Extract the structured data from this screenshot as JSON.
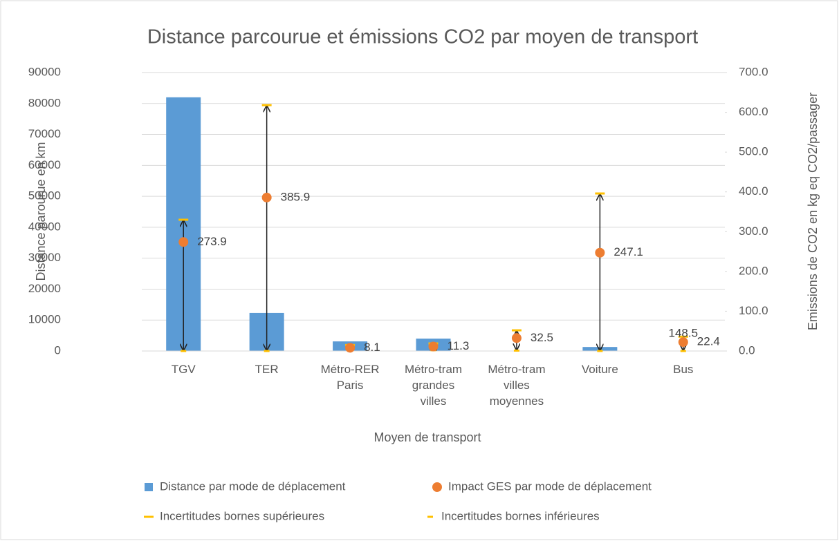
{
  "chart_data": {
    "type": "bar",
    "title": "Distance parcourue et émissions CO2 par moyen de transport",
    "x_label": "Moyen de transport",
    "y_label": "Distance parourue en km",
    "y2_label": "Emissions de CO2 en kg eq CO2/passager",
    "categories": [
      "TGV",
      "TER",
      "Métro-RER Paris",
      "Métro-tram grandes villes",
      "Métro-tram villes moyennes",
      "Voiture",
      "Bus"
    ],
    "series": [
      {
        "name": "Distance par mode de déplacement",
        "color": "#5b9bd5",
        "values": [
          82000,
          12300,
          3100,
          4000,
          0,
          1300,
          0
        ]
      },
      {
        "name": "Impact GES par mode de déplacement",
        "color": "#ed7d31",
        "axis": "y2",
        "values": [
          273.9,
          385.9,
          8.1,
          11.3,
          32.5,
          247.1,
          22.4
        ]
      },
      {
        "name": "Incertitudes bornes supérieures",
        "color": "#ffc000",
        "axis": "y2",
        "values": [
          330,
          618,
          15,
          19,
          52,
          396,
          36
        ]
      },
      {
        "name": "Incertitudes bornes inférieures",
        "color": "#ffc000",
        "axis": "y2",
        "values": [
          0,
          0,
          2,
          2,
          1,
          0,
          0
        ]
      }
    ],
    "annotations": [
      "148.5"
    ],
    "ylim": [
      0,
      90000
    ],
    "yticks": [
      0,
      10000,
      20000,
      30000,
      40000,
      50000,
      60000,
      70000,
      80000,
      90000
    ],
    "y2lim": [
      0,
      700
    ],
    "y2ticks": [
      {
        "value": 0,
        "label": "0.0"
      },
      {
        "value": 100,
        "label": "100.0"
      },
      {
        "value": 200,
        "label": "200.0"
      },
      {
        "value": 300,
        "label": "300.0"
      },
      {
        "value": 400,
        "label": "400.0"
      },
      {
        "value": 500,
        "label": "500.0"
      },
      {
        "value": 600,
        "label": "600.0"
      },
      {
        "value": 700,
        "label": "700.0"
      }
    ],
    "grid": true
  }
}
